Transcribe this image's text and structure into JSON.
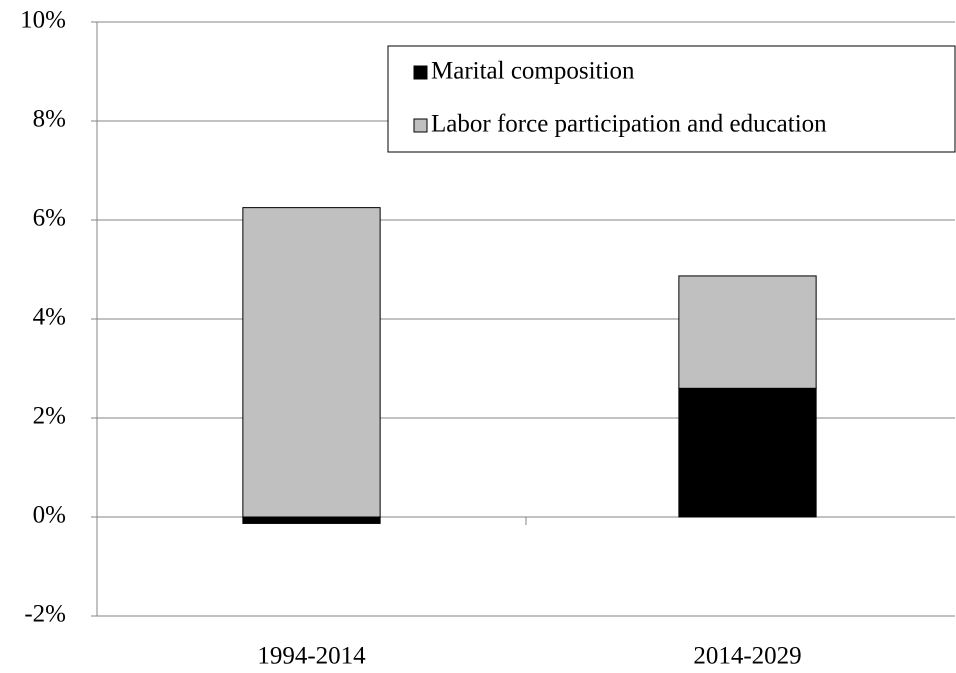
{
  "chart_data": {
    "type": "bar",
    "stacked": true,
    "categories": [
      "1994-2014",
      "2014-2029"
    ],
    "series": [
      {
        "name": "Marital composition",
        "color": "#000000",
        "values": [
          -0.13,
          2.6
        ]
      },
      {
        "name": "Labor force participation and education",
        "color": "#c0c0c0",
        "values": [
          6.25,
          2.27
        ]
      }
    ],
    "ylim": [
      -2,
      10
    ],
    "yticks": [
      {
        "value": -2,
        "label": "-2%"
      },
      {
        "value": 0,
        "label": "0%"
      },
      {
        "value": 2,
        "label": "2%"
      },
      {
        "value": 4,
        "label": "4%"
      },
      {
        "value": 6,
        "label": "6%"
      },
      {
        "value": 8,
        "label": "8%"
      },
      {
        "value": 10,
        "label": "10%"
      }
    ],
    "grid": true,
    "legend": "top-right"
  }
}
